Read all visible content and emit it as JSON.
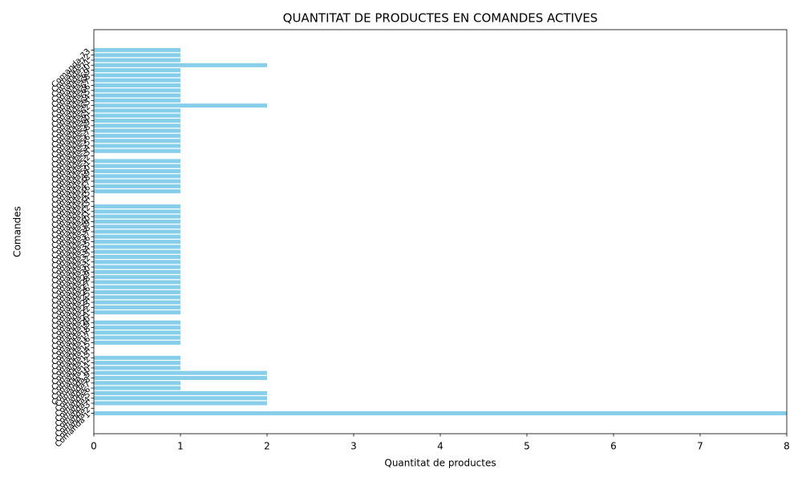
{
  "chart_data": {
    "type": "barh",
    "title": "QUANTITAT DE PRODUCTES EN COMANDES ACTIVES",
    "x_label": "Quantitat de productes",
    "y_label": "Comandes",
    "color": "#87ceeb",
    "categories": [
      "Comanda 1",
      "Comanda 2",
      "Comanda 3",
      "Comanda 4",
      "Comanda 5",
      "Comanda 6",
      "Comanda 7",
      "Comanda 8",
      "Comanda 9",
      "Comanda 10",
      "Comanda 11",
      "Comanda 12",
      "Comanda 13",
      "Comanda 14",
      "Comanda 15",
      "Comanda 16",
      "Comanda 17",
      "Comanda 18",
      "Comanda 19",
      "Comanda 20",
      "Comanda 21",
      "Comanda 22",
      "Comanda 23",
      "Comanda 24",
      "Comanda 25",
      "Comanda 26",
      "Comanda 27",
      "Comanda 28",
      "Comanda 29",
      "Comanda 30",
      "Comanda 31",
      "Comanda 32",
      "Comanda 33",
      "Comanda 34",
      "Comanda 35",
      "Comanda 36",
      "Comanda 37",
      "Comanda 38",
      "Comanda 39",
      "Comanda 40",
      "Comanda 41",
      "Comanda 42",
      "Comanda 43",
      "Comanda 44",
      "Comanda 45",
      "Comanda 46",
      "Comanda 47",
      "Comanda 48",
      "Comanda 49",
      "Comanda 50",
      "Comanda 51",
      "Comanda 52",
      "Comanda 53",
      "Comanda 54",
      "Comanda 55",
      "Comanda 56",
      "Comanda 57",
      "Comanda 58",
      "Comanda 59",
      "Comanda 60",
      "Comanda 61",
      "Comanda 62",
      "Comanda 63",
      "Comanda 64",
      "Comanda 65",
      "Comanda 66",
      "Comanda 67",
      "Comanda 68",
      "Comanda 69",
      "Comanda 70",
      "Comanda 71",
      "Comanda 72",
      "Comanda 73"
    ],
    "values": [
      8,
      0,
      2,
      2,
      2,
      1,
      1,
      2,
      2,
      1,
      1,
      1,
      0,
      0,
      1,
      1,
      1,
      1,
      1,
      0,
      1,
      1,
      1,
      1,
      1,
      1,
      1,
      1,
      1,
      1,
      1,
      1,
      1,
      1,
      1,
      1,
      1,
      1,
      1,
      1,
      1,
      1,
      0,
      0,
      1,
      1,
      1,
      1,
      1,
      1,
      1,
      0,
      1,
      1,
      1,
      1,
      1,
      1,
      1,
      1,
      1,
      2,
      1,
      1,
      1,
      1,
      1,
      1,
      1,
      2,
      1,
      1,
      1
    ],
    "xlim": [
      0,
      8
    ],
    "xticks": [
      0,
      1,
      2,
      3,
      4,
      5,
      6,
      7,
      8
    ]
  }
}
